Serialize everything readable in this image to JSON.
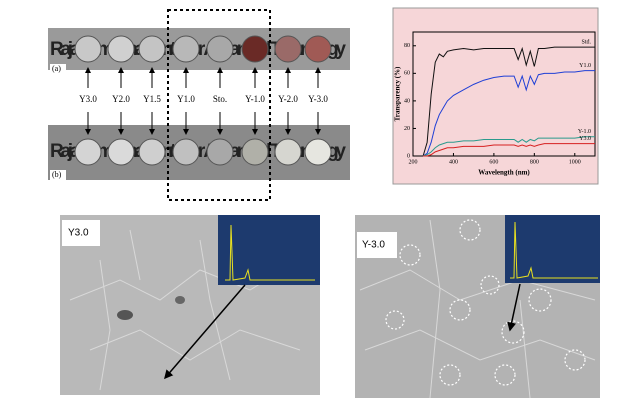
{
  "samples": {
    "labels": [
      "Y3.0",
      "Y2.0",
      "Y1.5",
      "Y1.0",
      "Sto.",
      "Y-1.0",
      "Y-2.0",
      "Y-3.0"
    ],
    "banner_text": "Raja Ramanna Centre for Advanced Technology",
    "panel_a": "(a)",
    "panel_b": "(b)"
  },
  "chart_data": {
    "type": "line",
    "ylabel": "Transparency (%)",
    "xlabel": "Wavelength (nm)",
    "x": [
      250,
      270,
      290,
      310,
      330,
      350,
      370,
      400,
      450,
      500,
      550,
      600,
      650,
      700,
      720,
      740,
      760,
      780,
      800,
      820,
      850,
      900,
      950,
      1000,
      1050,
      1100
    ],
    "series": [
      {
        "name": "Std.",
        "color": "#111111",
        "values": [
          0,
          10,
          45,
          68,
          74,
          72,
          76,
          77,
          78,
          77,
          78,
          78,
          78,
          78,
          70,
          78,
          66,
          76,
          65,
          78,
          78,
          79,
          79,
          79,
          79,
          79
        ]
      },
      {
        "name": "Y1.0",
        "color": "#1f3fd6",
        "values": [
          0,
          2,
          10,
          22,
          30,
          35,
          40,
          44,
          48,
          52,
          55,
          57,
          58,
          58,
          50,
          58,
          48,
          58,
          52,
          59,
          60,
          60,
          61,
          61,
          62,
          62
        ]
      },
      {
        "name": "Y-1.0",
        "color": "#2a9a8c",
        "values": [
          0,
          1,
          3,
          6,
          8,
          9,
          10,
          10,
          11,
          11,
          12,
          12,
          12,
          12,
          10,
          12,
          10,
          12,
          11,
          13,
          13,
          13,
          13,
          13,
          14,
          14
        ]
      },
      {
        "name": "Y3.0",
        "color": "#d62020",
        "values": [
          0,
          0,
          1,
          3,
          4,
          5,
          6,
          6,
          7,
          7,
          7,
          8,
          8,
          8,
          7,
          8,
          7,
          8,
          7,
          8,
          9,
          9,
          9,
          9,
          9,
          9
        ]
      }
    ],
    "xlim": [
      200,
      1100
    ],
    "ylim": [
      0,
      90
    ],
    "xticks": [
      200,
      400,
      600,
      800,
      1000
    ],
    "yticks": [
      0,
      20,
      40,
      60,
      80
    ]
  },
  "sem": {
    "left_label": "Y3.0",
    "right_label": "Y-3.0"
  }
}
